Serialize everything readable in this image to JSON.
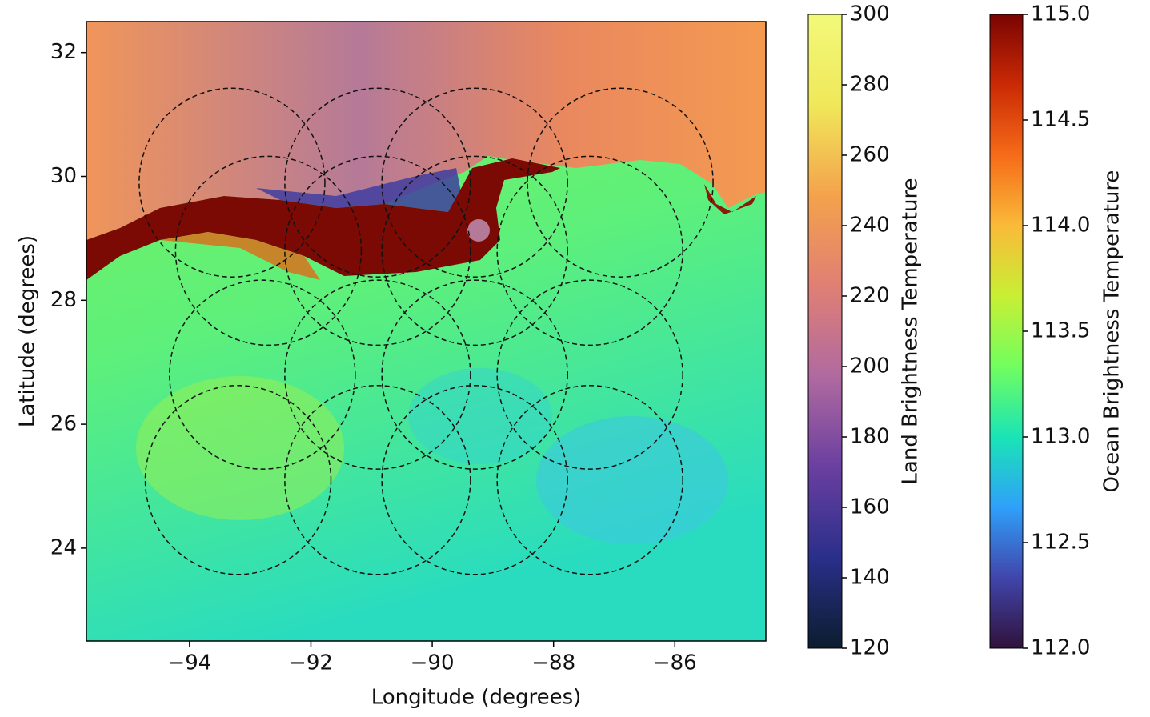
{
  "chart_data": {
    "type": "map",
    "xlabel": "Longitude (degrees)",
    "ylabel": "Latitude (degrees)",
    "xlim": [
      -95.7,
      -84.5
    ],
    "ylim": [
      22.5,
      32.5
    ],
    "xticks": [
      {
        "value": -94,
        "label": "−94"
      },
      {
        "value": -92,
        "label": "−92"
      },
      {
        "value": -90,
        "label": "−90"
      },
      {
        "value": -88,
        "label": "−88"
      },
      {
        "value": -86,
        "label": "−86"
      }
    ],
    "yticks": [
      24,
      26,
      28,
      30,
      32
    ],
    "footprints": [
      {
        "lon": -93.3,
        "lat": 29.9
      },
      {
        "lon": -90.9,
        "lat": 29.9
      },
      {
        "lon": -89.3,
        "lat": 29.9
      },
      {
        "lon": -86.9,
        "lat": 29.9
      },
      {
        "lon": -92.7,
        "lat": 28.8
      },
      {
        "lon": -90.9,
        "lat": 28.8
      },
      {
        "lon": -89.3,
        "lat": 28.8
      },
      {
        "lon": -87.4,
        "lat": 28.8
      },
      {
        "lon": -92.8,
        "lat": 26.8
      },
      {
        "lon": -90.9,
        "lat": 26.8
      },
      {
        "lon": -89.3,
        "lat": 26.8
      },
      {
        "lon": -87.4,
        "lat": 26.8
      },
      {
        "lon": -93.2,
        "lat": 25.1
      },
      {
        "lon": -90.9,
        "lat": 25.1
      },
      {
        "lon": -89.3,
        "lat": 25.1
      },
      {
        "lon": -87.4,
        "lat": 25.1
      }
    ],
    "colorbars": [
      {
        "label": "Land Brightness Temperature",
        "lim": [
          120,
          300
        ],
        "ticks": [
          120,
          140,
          160,
          180,
          200,
          220,
          240,
          260,
          280,
          300
        ],
        "colors": [
          "#0b1d2e",
          "#2a2f8a",
          "#6a3fa0",
          "#b06aa0",
          "#e07f74",
          "#f4a24c",
          "#f0e85a",
          "#f2f97a"
        ]
      },
      {
        "label": "Ocean Brightness Temperature",
        "lim": [
          112,
          115
        ],
        "ticks": [
          {
            "value": 112,
            "label": "112.0"
          },
          {
            "value": 112.5,
            "label": "112.5"
          },
          {
            "value": 113,
            "label": "113.0"
          },
          {
            "value": 113.5,
            "label": "113.5"
          },
          {
            "value": 114,
            "label": "114.0"
          },
          {
            "value": 114.5,
            "label": "114.5"
          },
          {
            "value": 115,
            "label": "115.0"
          }
        ],
        "colors": [
          "#30123b",
          "#4145ab",
          "#2fa0fa",
          "#1ae4b6",
          "#72fe5e",
          "#c8ef34",
          "#faba39",
          "#f66b19",
          "#ca2a04",
          "#7a0403"
        ]
      }
    ]
  }
}
